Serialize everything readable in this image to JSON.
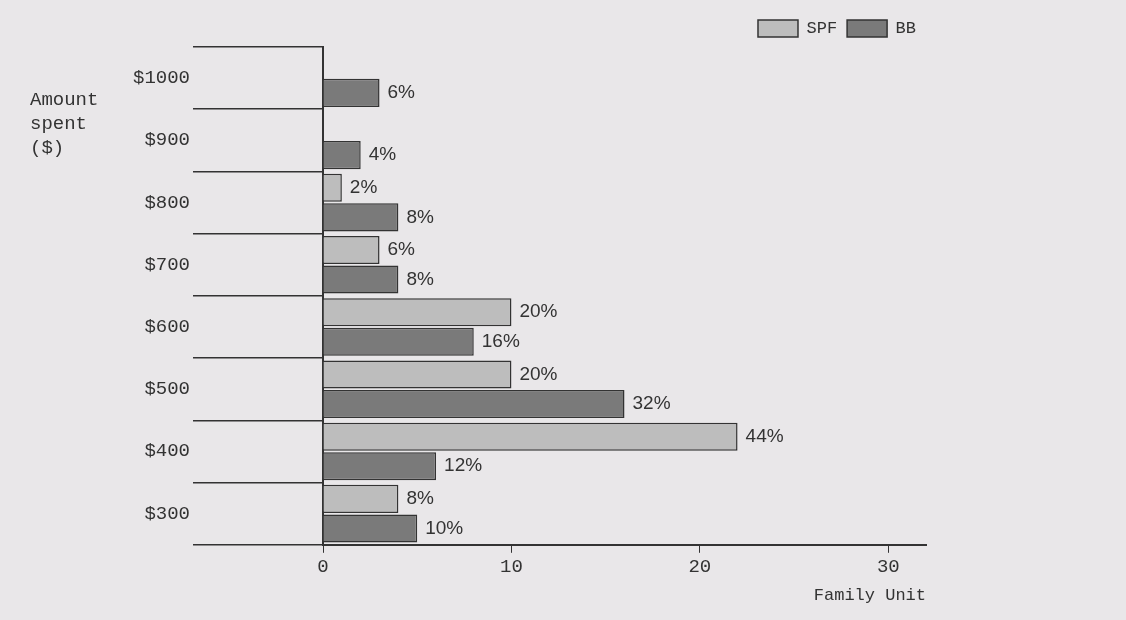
{
  "chart_data": {
    "type": "bar",
    "orientation": "horizontal",
    "xlabel": "Family Unit",
    "ylabel": "Amount spent ($)",
    "categories": [
      "$1000",
      "$900",
      "$800",
      "$700",
      "$600",
      "$500",
      "$400",
      "$300"
    ],
    "series": [
      {
        "name": "SPF",
        "color": "#bdbdbd",
        "values": [
          null,
          null,
          1,
          3,
          10,
          10,
          22,
          4
        ]
      },
      {
        "name": "BB",
        "color": "#7a7a7a",
        "values": [
          3,
          2,
          4,
          4,
          8,
          16,
          6,
          5
        ]
      }
    ],
    "annotations": [
      {
        "text": "6%",
        "x": 3,
        "y": "$1000"
      },
      {
        "text": "4%",
        "x": 2,
        "y": "$900"
      },
      {
        "text": "2%",
        "x": 1,
        "y": "$800"
      },
      {
        "text": "8%",
        "x": 4,
        "y": "$800"
      },
      {
        "text": "6%",
        "x": 3,
        "y": "$700"
      },
      {
        "text": "8%",
        "x": 4,
        "y": "$700"
      },
      {
        "text": "20%",
        "x": 10,
        "y": "$600"
      },
      {
        "text": "16%",
        "x": 8,
        "y": "$600"
      },
      {
        "text": "20%",
        "x": 10,
        "y": "$500"
      },
      {
        "text": "32%",
        "x": 16,
        "y": "$500"
      },
      {
        "text": "44%",
        "x": 22,
        "y": "$400"
      },
      {
        "text": "12%",
        "x": 6,
        "y": "$400"
      },
      {
        "text": "8%",
        "x": 4,
        "y": "$300"
      },
      {
        "text": "10%",
        "x": 5,
        "y": "$300"
      }
    ],
    "xlim": [
      0,
      32
    ],
    "xticks": [
      0,
      10,
      20,
      30
    ],
    "legend": "top right"
  }
}
